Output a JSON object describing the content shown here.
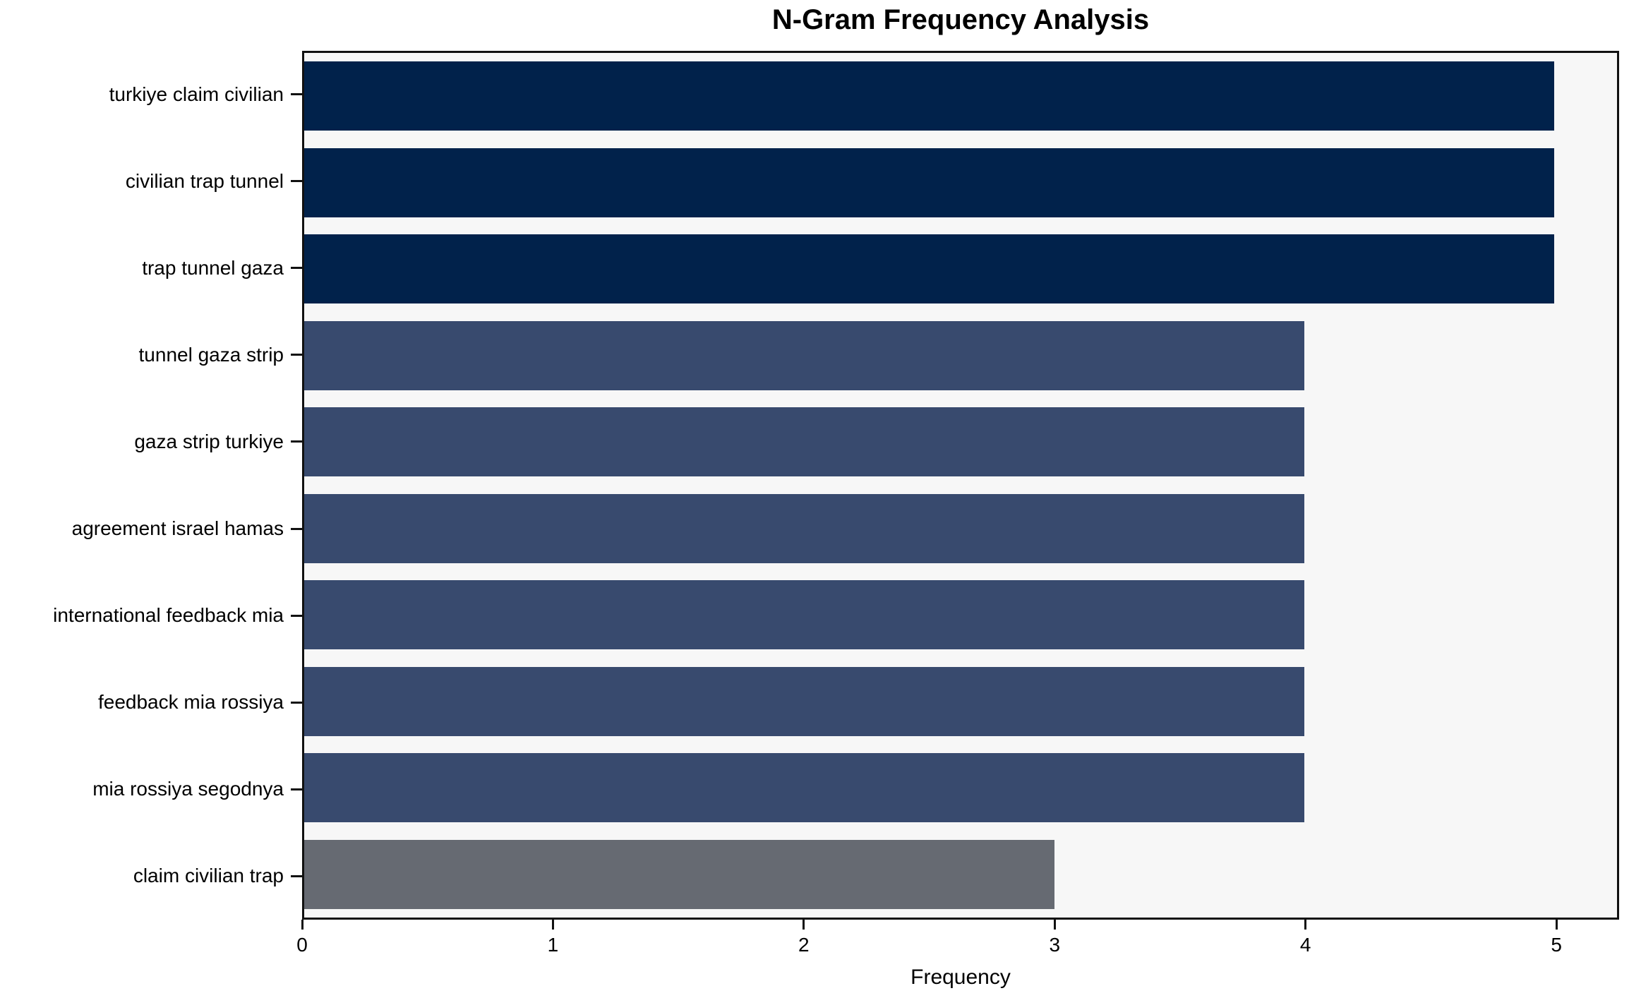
{
  "title": "N-Gram Frequency Analysis",
  "chart_data": {
    "type": "bar",
    "orientation": "horizontal",
    "title": "N-Gram Frequency Analysis",
    "xlabel": "Frequency",
    "ylabel": "",
    "categories": [
      "turkiye claim civilian",
      "civilian trap tunnel",
      "trap tunnel gaza",
      "tunnel gaza strip",
      "gaza strip turkiye",
      "agreement israel hamas",
      "international feedback mia",
      "feedback mia rossiya",
      "mia rossiya segodnya",
      "claim civilian trap"
    ],
    "values": [
      5,
      5,
      5,
      4,
      4,
      4,
      4,
      4,
      4,
      3
    ],
    "bar_colors": [
      "#01224b",
      "#01224b",
      "#01224b",
      "#384a6e",
      "#384a6e",
      "#384a6e",
      "#384a6e",
      "#384a6e",
      "#384a6e",
      "#666a72"
    ],
    "xticks": [
      0,
      1,
      2,
      3,
      4,
      5
    ],
    "xlim": [
      0,
      5.25
    ],
    "grid": false,
    "legend": "none",
    "plot_bg": "#f7f7f7",
    "fig_bg": "#ffffff",
    "spine_color": "#111111"
  }
}
